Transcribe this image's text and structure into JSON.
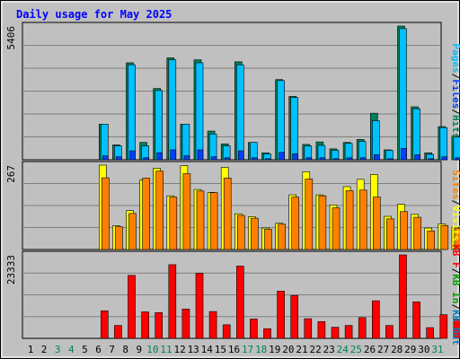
{
  "title": "Daily usage for May 2025",
  "colors": {
    "background": "#c0c0c0",
    "title": "#0000ff",
    "hits": "#00805c",
    "files": "#0040ff",
    "pages": "#00c0ff",
    "visits": "#ffff00",
    "sites": "#ff8000",
    "kbout": "#0080c0",
    "kbin": "#00a000",
    "kbf": "#ff0000",
    "weekend": "#00805c",
    "weekday": "#000000"
  },
  "chart_data": [
    {
      "type": "bar",
      "name": "hits-files-pages",
      "categories": [
        "1",
        "2",
        "3",
        "4",
        "5",
        "6",
        "7",
        "8",
        "9",
        "10",
        "11",
        "12",
        "13",
        "14",
        "15",
        "16",
        "17",
        "18",
        "19",
        "20",
        "21",
        "22",
        "23",
        "24",
        "25",
        "26",
        "27",
        "28",
        "29",
        "30",
        "31"
      ],
      "ymax_label": "5406",
      "ylim": [
        0,
        5406
      ],
      "series": [
        {
          "name": "Hits",
          "values": [
            0,
            0,
            0,
            1440,
            600,
            3920,
            700,
            2880,
            4120,
            1440,
            4040,
            1160,
            640,
            3960,
            700,
            280,
            3240,
            2560,
            620,
            720,
            440,
            700,
            820,
            1880,
            400,
            5406,
            2140,
            280,
            1340,
            960,
            1520
          ]
        },
        {
          "name": "Files",
          "values": [
            0,
            0,
            0,
            160,
            120,
            360,
            80,
            280,
            400,
            160,
            400,
            120,
            80,
            360,
            80,
            40,
            300,
            240,
            80,
            80,
            40,
            80,
            80,
            200,
            40,
            460,
            200,
            40,
            120,
            80,
            160
          ]
        },
        {
          "name": "Pages",
          "values": [
            0,
            0,
            0,
            1440,
            560,
            3840,
            560,
            2800,
            4040,
            1440,
            3920,
            1040,
            560,
            3840,
            700,
            240,
            3200,
            2520,
            560,
            580,
            380,
            660,
            740,
            1580,
            380,
            5300,
            2060,
            220,
            1300,
            920,
            1460
          ]
        }
      ],
      "legend": [
        "Pages",
        "Files",
        "Hits"
      ]
    },
    {
      "type": "bar",
      "name": "visits-sites",
      "categories": [
        "1",
        "2",
        "3",
        "4",
        "5",
        "6",
        "7",
        "8",
        "9",
        "10",
        "11",
        "12",
        "13",
        "14",
        "15",
        "16",
        "17",
        "18",
        "19",
        "20",
        "21",
        "22",
        "23",
        "24",
        "25",
        "26",
        "27",
        "28",
        "29",
        "30",
        "31"
      ],
      "ymax_label": "267",
      "ylim": [
        0,
        267
      ],
      "series": [
        {
          "name": "Visits",
          "values": [
            0,
            0,
            0,
            267,
            75,
            123,
            220,
            257,
            170,
            265,
            190,
            181,
            260,
            113,
            104,
            68,
            83,
            173,
            246,
            173,
            141,
            199,
            222,
            237,
            105,
            143,
            111,
            68,
            81,
            71,
            66
          ]
        },
        {
          "name": "Sites",
          "values": [
            0,
            0,
            0,
            227,
            72,
            114,
            226,
            248,
            166,
            240,
            185,
            180,
            226,
            108,
            99,
            64,
            80,
            166,
            223,
            170,
            132,
            186,
            188,
            166,
            97,
            120,
            102,
            59,
            76,
            68,
            64
          ]
        }
      ],
      "legend": [
        "Sites",
        "Visits"
      ]
    },
    {
      "type": "bar",
      "name": "kbytes",
      "categories": [
        "1",
        "2",
        "3",
        "4",
        "5",
        "6",
        "7",
        "8",
        "9",
        "10",
        "11",
        "12",
        "13",
        "14",
        "15",
        "16",
        "17",
        "18",
        "19",
        "20",
        "21",
        "22",
        "23",
        "24",
        "25",
        "26",
        "27",
        "28",
        "29",
        "30",
        "31"
      ],
      "ymax_label": "23333",
      "ylim": [
        0,
        23333
      ],
      "series": [
        {
          "name": "KB F",
          "values": [
            0,
            0,
            0,
            7700,
            3600,
            17600,
            7400,
            7200,
            20600,
            8200,
            18200,
            7500,
            3800,
            20200,
            5400,
            2700,
            13200,
            12000,
            5500,
            4700,
            3100,
            3600,
            5800,
            10500,
            3600,
            23333,
            10200,
            3000,
            6600,
            5400,
            8800
          ]
        }
      ],
      "legend": [
        "KB F",
        "KB In",
        "KB Out"
      ]
    }
  ],
  "days": [
    "1",
    "2",
    "3",
    "4",
    "5",
    "6",
    "7",
    "8",
    "9",
    "10",
    "11",
    "12",
    "13",
    "14",
    "15",
    "16",
    "17",
    "18",
    "19",
    "20",
    "21",
    "22",
    "23",
    "24",
    "25",
    "26",
    "27",
    "28",
    "29",
    "30",
    "31"
  ],
  "weekend_days": [
    3,
    4,
    10,
    11,
    17,
    18,
    24,
    25,
    31
  ]
}
